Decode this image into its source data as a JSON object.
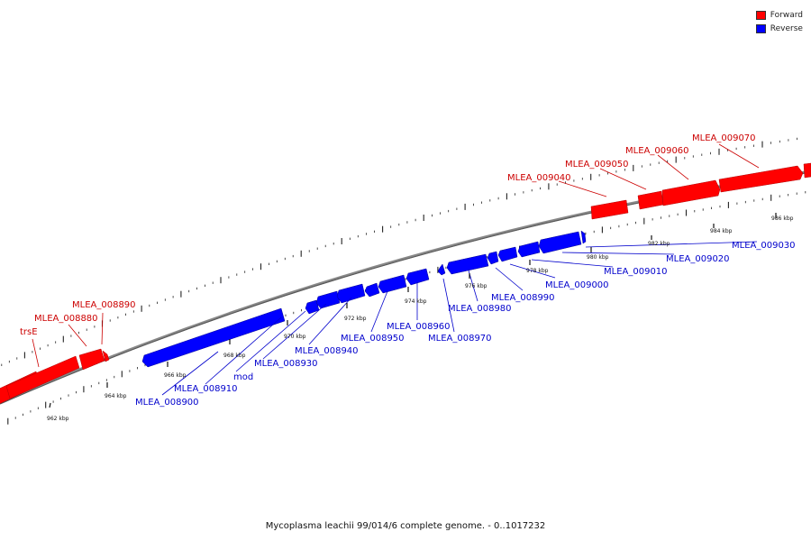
{
  "legend": {
    "forward": {
      "label": "Forward",
      "color": "#ff0000"
    },
    "reverse": {
      "label": "Reverse",
      "color": "#0000ff"
    }
  },
  "caption": "Mycoplasma leachii 99/014/6 complete genome. - 0..1017232",
  "ticks": [
    "962 kbp",
    "964 kbp",
    "966 kbp",
    "968 kbp",
    "970 kbp",
    "972 kbp",
    "974 kbp",
    "976 kbp",
    "978 kbp",
    "980 kbp",
    "982 kbp",
    "984 kbp",
    "986 kbp"
  ],
  "forward_genes": [
    "trsE",
    "MLEA_008880",
    "MLEA_008890",
    "MLEA_009040",
    "MLEA_009050",
    "MLEA_009060",
    "MLEA_009070"
  ],
  "reverse_genes": [
    "MLEA_008900",
    "MLEA_008910",
    "mod",
    "MLEA_008930",
    "MLEA_008940",
    "MLEA_008950",
    "MLEA_008960",
    "MLEA_008970",
    "MLEA_008980",
    "MLEA_008990",
    "MLEA_009000",
    "MLEA_009010",
    "MLEA_009020",
    "MLEA_009030"
  ]
}
